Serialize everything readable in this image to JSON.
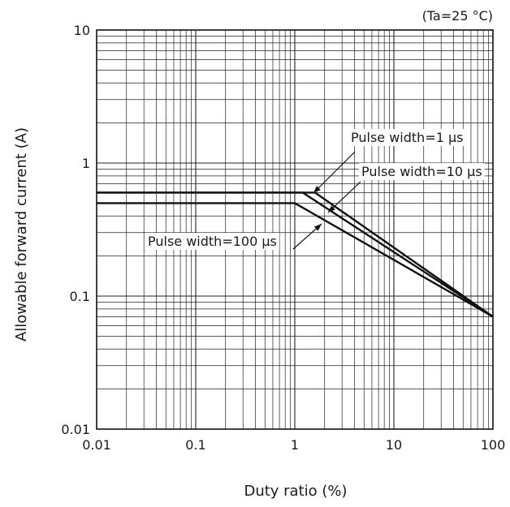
{
  "chart_data": {
    "type": "line",
    "title": "",
    "condition_note": "(Ta=25 °C)",
    "xlabel": "Duty ratio (%)",
    "ylabel": "Allowable forward current (A)",
    "x_scale": "log",
    "y_scale": "log",
    "xlim": [
      0.01,
      100
    ],
    "ylim": [
      0.01,
      10
    ],
    "x_ticks": [
      "0.01",
      "0.1",
      "1",
      "10",
      "100"
    ],
    "y_ticks": [
      "0.01",
      "0.1",
      "1",
      "10"
    ],
    "grid": true,
    "series": [
      {
        "name": "Pulse width=1 µs",
        "x": [
          0.01,
          1.6,
          100
        ],
        "y": [
          0.6,
          0.6,
          0.07
        ]
      },
      {
        "name": "Pulse width=10 µs",
        "x": [
          0.01,
          1.2,
          100
        ],
        "y": [
          0.6,
          0.6,
          0.07
        ]
      },
      {
        "name": "Pulse width=100 µs",
        "x": [
          0.01,
          1.0,
          100
        ],
        "y": [
          0.5,
          0.5,
          0.07
        ]
      }
    ]
  }
}
